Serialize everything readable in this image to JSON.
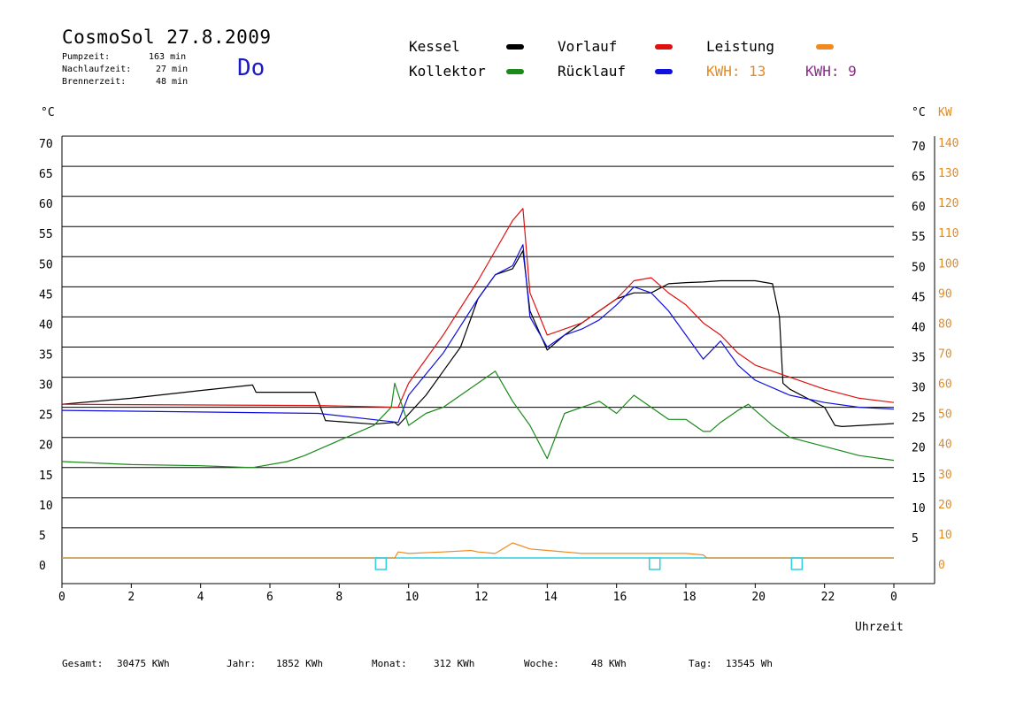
{
  "header": {
    "title": "CosmoSol 27.8.2009",
    "day": "Do",
    "info": [
      {
        "label": "Pumpzeit:",
        "value": "163 min"
      },
      {
        "label": "Nachlaufzeit:",
        "value": "27 min"
      },
      {
        "label": "Brennerzeit:",
        "value": "48 min"
      }
    ]
  },
  "legend": {
    "kessel": {
      "label": "Kessel",
      "color": "#000000"
    },
    "vorlauf": {
      "label": "Vorlauf",
      "color": "#e01010"
    },
    "leistung": {
      "label": "Leistung",
      "color": "#f08a20"
    },
    "kollektor": {
      "label": "Kollektor",
      "color": "#1a8a1a"
    },
    "ruecklauf": {
      "label": "Rücklauf",
      "color": "#1010e0"
    },
    "kwh1": "KWH: 13",
    "kwh2": "KWH: 9"
  },
  "axes": {
    "left_unit": "°C",
    "right_unit": "°C",
    "right_unit2": "KW",
    "xlabel": "Uhrzeit"
  },
  "footer": [
    {
      "label": "Gesamt:",
      "value": "30475 KWh"
    },
    {
      "label": "Jahr:",
      "value": "1852 KWh"
    },
    {
      "label": "Monat:",
      "value": "312 KWh"
    },
    {
      "label": "Woche:",
      "value": "48 KWh"
    },
    {
      "label": "Tag:",
      "value": "13545 Wh"
    }
  ],
  "chart_data": {
    "type": "line",
    "xlabel": "Uhrzeit",
    "ylabel": "°C",
    "y2label": "KW",
    "xlim": [
      0,
      24
    ],
    "ylim": [
      0,
      70
    ],
    "grid": true,
    "x_ticks": [
      "0",
      "2",
      "4",
      "6",
      "8",
      "10",
      "12",
      "14",
      "16",
      "18",
      "20",
      "22",
      "0"
    ],
    "y_ticks_left": [
      "70",
      "65",
      "60",
      "55",
      "50",
      "45",
      "40",
      "35",
      "30",
      "25",
      "20",
      "15",
      "10",
      "5",
      "0"
    ],
    "y_ticks_right": [
      "70",
      "65",
      "60",
      "55",
      "50",
      "45",
      "40",
      "35",
      "30",
      "25",
      "20",
      "15",
      "10",
      "5",
      "0"
    ],
    "y2_ticks": [
      "140",
      "130",
      "120",
      "110",
      "100",
      "90",
      "80",
      "70",
      "60",
      "50",
      "40",
      "30",
      "20",
      "10",
      "0"
    ],
    "series": [
      {
        "name": "Kessel",
        "color": "#000000",
        "x": [
          0,
          2,
          4,
          5.5,
          5.6,
          7.3,
          7.6,
          9.0,
          9.6,
          9.7,
          10.5,
          11.0,
          11.5,
          12.0,
          12.5,
          13.0,
          13.3,
          13.5,
          14.0,
          14.5,
          15.0,
          15.5,
          16.0,
          16.5,
          17.0,
          17.5,
          18.0,
          18.5,
          19.0,
          20.0,
          20.5,
          20.7,
          20.8,
          21.0,
          22.0,
          22.3,
          22.5,
          24
        ],
        "y": [
          25.5,
          26.5,
          27.8,
          28.7,
          27.5,
          27.5,
          22.8,
          22.2,
          22.5,
          22.0,
          27.0,
          31.0,
          35.0,
          43.0,
          47.0,
          48.0,
          51.0,
          41.0,
          34.5,
          37.0,
          39.0,
          41.0,
          43.0,
          44.0,
          44.0,
          45.5,
          45.7,
          45.8,
          46.0,
          46.0,
          45.5,
          40.0,
          29.0,
          28.0,
          25.0,
          22.0,
          21.8,
          22.3
        ]
      },
      {
        "name": "Vorlauf",
        "color": "#e01010",
        "x": [
          0,
          7.4,
          9.7,
          10.0,
          11.0,
          12.0,
          12.5,
          13.0,
          13.3,
          13.5,
          14.0,
          14.5,
          15.0,
          15.5,
          16.0,
          16.5,
          17.0,
          17.5,
          18.0,
          18.5,
          19.0,
          19.5,
          20.0,
          21.0,
          22.0,
          23.0,
          24
        ],
        "y": [
          25.5,
          25.3,
          25.0,
          29.0,
          37.0,
          46.0,
          51.0,
          56.0,
          58.0,
          44.0,
          37.0,
          38.0,
          39.0,
          41.0,
          43.0,
          46.0,
          46.5,
          44.0,
          42.0,
          39.0,
          37.0,
          34.0,
          32.0,
          30.0,
          28.0,
          26.5,
          25.8
        ]
      },
      {
        "name": "Rücklauf",
        "color": "#1010e0",
        "x": [
          0,
          7.4,
          9.7,
          10.0,
          11.0,
          12.0,
          12.5,
          13.0,
          13.3,
          13.5,
          14.0,
          14.5,
          15.0,
          15.5,
          16.0,
          16.5,
          17.0,
          17.5,
          18.0,
          18.5,
          19.0,
          19.5,
          20.0,
          21.0,
          22.0,
          23.0,
          24
        ],
        "y": [
          24.5,
          24.0,
          22.5,
          27.0,
          34.0,
          43.0,
          47.0,
          48.5,
          52.0,
          40.0,
          35.0,
          37.0,
          38.0,
          39.5,
          42.0,
          45.0,
          44.0,
          41.0,
          37.0,
          33.0,
          36.0,
          32.0,
          29.5,
          27.0,
          25.8,
          25.0,
          24.7
        ]
      },
      {
        "name": "Kollektor",
        "color": "#1a8a1a",
        "x": [
          0,
          2,
          4,
          5.5,
          6.5,
          7.0,
          8.0,
          9.0,
          9.5,
          9.6,
          10.0,
          10.5,
          11.0,
          11.5,
          12.0,
          12.5,
          13.0,
          13.5,
          14.0,
          14.5,
          15.0,
          15.5,
          16.0,
          16.5,
          17.0,
          17.5,
          18.0,
          18.5,
          18.7,
          19.0,
          19.5,
          19.8,
          20.0,
          20.5,
          21.0,
          22.0,
          23.0,
          24
        ],
        "y": [
          16.0,
          15.5,
          15.3,
          15.0,
          16.0,
          17.0,
          19.5,
          22.0,
          25.0,
          29.0,
          22.0,
          24.0,
          25.0,
          27.0,
          29.0,
          31.0,
          26.0,
          22.0,
          16.5,
          24.0,
          25.0,
          26.0,
          24.0,
          27.0,
          25.0,
          23.0,
          23.0,
          21.0,
          21.0,
          22.5,
          24.5,
          25.5,
          24.5,
          22.0,
          20.0,
          18.5,
          17.0,
          16.2
        ]
      },
      {
        "name": "Leistung",
        "color": "#f08a20",
        "axis": "right",
        "x": [
          0,
          9.6,
          9.7,
          10.0,
          11.0,
          11.8,
          12.0,
          12.5,
          13.0,
          13.5,
          14.0,
          14.5,
          15.0,
          15.5,
          16.0,
          16.5,
          17.0,
          17.5,
          18.0,
          18.5,
          18.6,
          24
        ],
        "y": [
          0,
          0,
          2,
          1.5,
          2.0,
          2.5,
          2.0,
          1.5,
          5.0,
          3.0,
          2.5,
          2.0,
          1.5,
          1.5,
          1.5,
          1.5,
          1.5,
          1.5,
          1.5,
          1.0,
          0,
          0
        ]
      }
    ],
    "markers": [
      {
        "name": "pump-on",
        "x": 9.2
      },
      {
        "name": "pump-mid",
        "x": 17.1
      },
      {
        "name": "pump-off",
        "x": 21.2
      }
    ]
  }
}
